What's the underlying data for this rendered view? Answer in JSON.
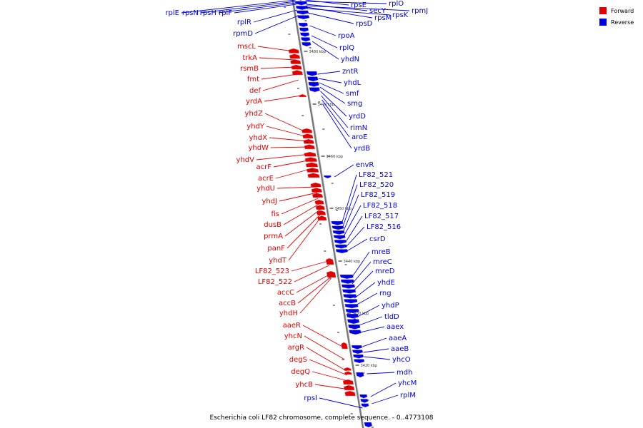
{
  "caption": "Escherichia coli LF82 chromosome, complete sequence. - 0..4773108",
  "colors": {
    "forward": "#e00000",
    "reverse": "#0000e0",
    "backbone": "#777777"
  },
  "legend": [
    {
      "label": "Forward",
      "color": "#e00000"
    },
    {
      "label": "Reverse",
      "color": "#0000e0"
    }
  ],
  "ticks": [
    "3480 kbp",
    "3470 kbp",
    "3460 kbp",
    "3450 kbp",
    "3440 kbp",
    "3430 kbp",
    "3420 kbp"
  ],
  "forward_genes": [
    "mscL",
    "trkA",
    "rsmB",
    "fmt",
    "def",
    "yrdA",
    "yhdZ",
    "yhdY",
    "yhdX",
    "yhdW",
    "yhdV",
    "acrF",
    "acrE",
    "yhdU",
    "yhdJ",
    "fis",
    "dusB",
    "prmA",
    "panF",
    "yhdT",
    "LF82_523",
    "LF82_522",
    "accC",
    "accB",
    "yhdH",
    "aaeR",
    "yhcN",
    "argR",
    "degS",
    "degQ",
    "yhcB"
  ],
  "reverse_genes_left": [
    "rplE",
    "rpsN",
    "rpsH",
    "rplF",
    "rplR",
    "rpmD",
    "rpsI"
  ],
  "reverse_genes_right": [
    "rpsE",
    "rplO",
    "secY",
    "rpmJ",
    "rpsM",
    "rpsK",
    "rpsD",
    "rpoA",
    "rplQ",
    "yhdN",
    "zntR",
    "yhdL",
    "smf",
    "smg",
    "yrdD",
    "rimN",
    "aroE",
    "yrdB",
    "envR",
    "LF82_521",
    "LF82_520",
    "LF82_519",
    "LF82_518",
    "LF82_517",
    "LF82_516",
    "csrD",
    "mreB",
    "mreC",
    "mreD",
    "yhdE",
    "rng",
    "yhdP",
    "tldD",
    "aaex",
    "aaeA",
    "aaeB",
    "yhcO",
    "mdh",
    "yhcM",
    "rplM"
  ]
}
